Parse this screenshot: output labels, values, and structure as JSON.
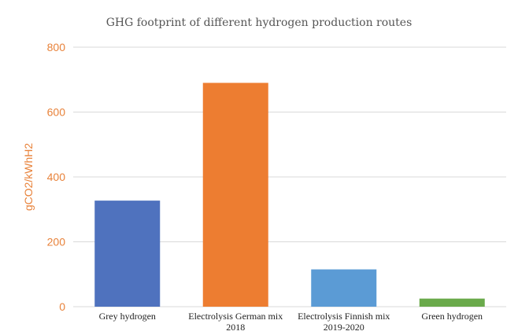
{
  "chart_data": {
    "type": "bar",
    "title": "GHG footprint of different hydrogen production routes",
    "xlabel": "",
    "ylabel": "gCO2/kWhH2",
    "ylim": [
      0,
      800
    ],
    "yticks": [
      "0",
      "200",
      "400",
      "600",
      "800"
    ],
    "categories": [
      [
        "Grey hydrogen"
      ],
      [
        "Electrolysis German mix",
        "2018"
      ],
      [
        "Electrolysis Finnish mix",
        "2019-2020"
      ],
      [
        "Green hydrogen"
      ]
    ],
    "values": [
      327,
      690,
      115,
      25
    ],
    "colors": [
      "#4f72be",
      "#ed7d31",
      "#5b9bd5",
      "#6aaa4b"
    ],
    "grid": true,
    "legend": "none"
  }
}
